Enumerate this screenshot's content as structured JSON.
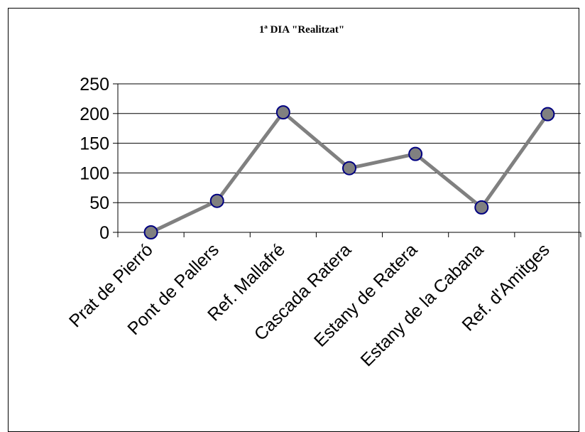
{
  "chart_data": {
    "type": "line",
    "title": "1ª DIA \"Realitzat\"",
    "xlabel": "",
    "ylabel": "",
    "categories": [
      "Prat de Pierró",
      "Pont de Pallers",
      "Ref. Mallafré",
      "Cascada Ratera",
      "Estany de Ratera",
      "Estany de la Cabana",
      "Ref. d'Amitges"
    ],
    "series": [
      {
        "values": [
          0,
          53,
          202,
          108,
          132,
          42,
          199
        ]
      }
    ],
    "ylim": [
      0,
      250
    ],
    "y_ticks": [
      0,
      50,
      100,
      150,
      200,
      250
    ],
    "grid": true,
    "legend": "none",
    "colors": {
      "line": "#808080",
      "marker_fill": "#808080",
      "marker_stroke": "#000080",
      "gridline": "#000000",
      "axis": "#000000"
    }
  }
}
